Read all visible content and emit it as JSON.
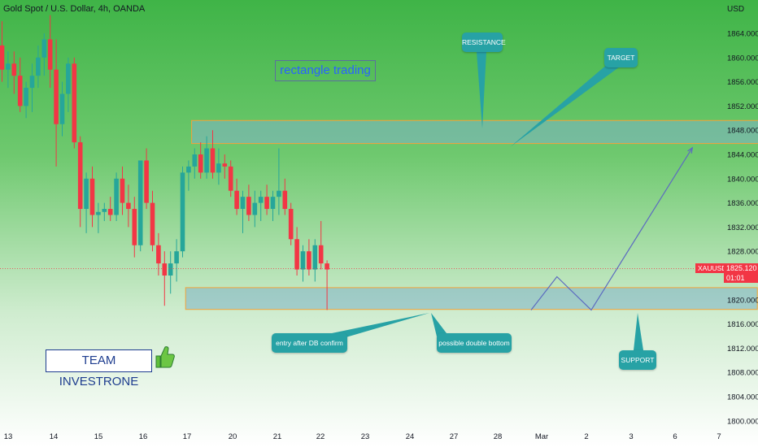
{
  "header": {
    "title": "Gold Spot / U.S. Dollar, 4h, OANDA",
    "currency": "USD"
  },
  "annotations": {
    "title_box": "rectangle trading",
    "resistance": "RESISTANCE",
    "target": "TARGET",
    "support": "SUPPORT",
    "entry": "entry after DB confirm",
    "double_bottom": "possible double bottom",
    "team": "TEAM INVESTRONE"
  },
  "price_tag": {
    "symbol": "XAUUSD",
    "price": "1825.120",
    "countdown": "01:01",
    "color": "#f23645"
  },
  "colors": {
    "up": "#26a69a",
    "down": "#f23645",
    "zone_fill": "#7fb2c6",
    "zone_border": "#f2a33a",
    "callout": "#27a2a5",
    "path": "#5c6bc0"
  },
  "chart_data": {
    "type": "candlestick",
    "y_axis_labels": [
      "1864.000",
      "1860.000",
      "1856.000",
      "1852.000",
      "1848.000",
      "1844.000",
      "1840.000",
      "1836.000",
      "1832.000",
      "1828.000",
      "1824.000",
      "1820.000",
      "1816.000",
      "1812.000",
      "1808.000",
      "1804.000",
      "1800.000"
    ],
    "x_axis_labels": [
      "13",
      "14",
      "15",
      "16",
      "17",
      "20",
      "21",
      "22",
      "23",
      "24",
      "27",
      "28",
      "Mar",
      "2",
      "3",
      "6",
      "7"
    ],
    "ylim": [
      1799,
      1868
    ],
    "current_price": 1825.12,
    "zones": [
      {
        "name": "resistance",
        "x_from": 31.5,
        "x_to": 126.5,
        "y_low": 1845.8,
        "y_high": 1849.6
      },
      {
        "name": "support",
        "x_from": 30.5,
        "x_to": 125.5,
        "y_low": 1818.4,
        "y_high": 1822.0
      }
    ],
    "projection": [
      {
        "x": 87.9,
        "y": 1818.3
      },
      {
        "x": 92.2,
        "y": 1823.8
      },
      {
        "x": 97.9,
        "y": 1818.3
      },
      {
        "x": 114.7,
        "y": 1845.1
      }
    ],
    "candles": [
      {
        "o": 1862,
        "h": 1866,
        "l": 1856,
        "c": 1858
      },
      {
        "o": 1858,
        "h": 1861,
        "l": 1855,
        "c": 1859
      },
      {
        "o": 1859,
        "h": 1861,
        "l": 1854,
        "c": 1857
      },
      {
        "o": 1857,
        "h": 1860,
        "l": 1851,
        "c": 1852
      },
      {
        "o": 1852,
        "h": 1856,
        "l": 1850,
        "c": 1855
      },
      {
        "o": 1855,
        "h": 1859,
        "l": 1851,
        "c": 1857
      },
      {
        "o": 1857,
        "h": 1862,
        "l": 1855,
        "c": 1860
      },
      {
        "o": 1860,
        "h": 1864,
        "l": 1857,
        "c": 1863
      },
      {
        "o": 1863,
        "h": 1867,
        "l": 1855,
        "c": 1858
      },
      {
        "o": 1858,
        "h": 1863,
        "l": 1842,
        "c": 1849
      },
      {
        "o": 1849,
        "h": 1856,
        "l": 1847,
        "c": 1854
      },
      {
        "o": 1854,
        "h": 1860,
        "l": 1851,
        "c": 1859
      },
      {
        "o": 1859,
        "h": 1860,
        "l": 1845,
        "c": 1846
      },
      {
        "o": 1846,
        "h": 1847,
        "l": 1832,
        "c": 1835
      },
      {
        "o": 1835,
        "h": 1841,
        "l": 1831,
        "c": 1840
      },
      {
        "o": 1840,
        "h": 1842,
        "l": 1832,
        "c": 1834
      },
      {
        "o": 1834,
        "h": 1836,
        "l": 1831,
        "c": 1834.5
      },
      {
        "o": 1834.5,
        "h": 1836,
        "l": 1833,
        "c": 1835
      },
      {
        "o": 1835,
        "h": 1837,
        "l": 1833,
        "c": 1834
      },
      {
        "o": 1834,
        "h": 1841,
        "l": 1833,
        "c": 1840
      },
      {
        "o": 1840,
        "h": 1842,
        "l": 1834,
        "c": 1836
      },
      {
        "o": 1836,
        "h": 1839,
        "l": 1832,
        "c": 1835
      },
      {
        "o": 1835,
        "h": 1837,
        "l": 1827,
        "c": 1829
      },
      {
        "o": 1829,
        "h": 1843,
        "l": 1828,
        "c": 1843
      },
      {
        "o": 1843,
        "h": 1845,
        "l": 1835,
        "c": 1836
      },
      {
        "o": 1836,
        "h": 1838,
        "l": 1828,
        "c": 1829
      },
      {
        "o": 1829,
        "h": 1831,
        "l": 1824,
        "c": 1826
      },
      {
        "o": 1826,
        "h": 1828,
        "l": 1819,
        "c": 1824
      },
      {
        "o": 1824,
        "h": 1828,
        "l": 1821,
        "c": 1826
      },
      {
        "o": 1826,
        "h": 1830,
        "l": 1823,
        "c": 1828
      },
      {
        "o": 1828,
        "h": 1842,
        "l": 1827,
        "c": 1841
      },
      {
        "o": 1841,
        "h": 1843,
        "l": 1838,
        "c": 1842
      },
      {
        "o": 1842,
        "h": 1845,
        "l": 1840,
        "c": 1844
      },
      {
        "o": 1844,
        "h": 1846,
        "l": 1840,
        "c": 1841
      },
      {
        "o": 1841,
        "h": 1847,
        "l": 1840,
        "c": 1845
      },
      {
        "o": 1845,
        "h": 1848,
        "l": 1840,
        "c": 1841
      },
      {
        "o": 1841,
        "h": 1845,
        "l": 1839,
        "c": 1842.5
      },
      {
        "o": 1842.5,
        "h": 1844,
        "l": 1840,
        "c": 1842
      },
      {
        "o": 1842,
        "h": 1843,
        "l": 1837,
        "c": 1838
      },
      {
        "o": 1838,
        "h": 1840,
        "l": 1834,
        "c": 1835
      },
      {
        "o": 1835,
        "h": 1838,
        "l": 1831,
        "c": 1837
      },
      {
        "o": 1837,
        "h": 1839,
        "l": 1833,
        "c": 1834
      },
      {
        "o": 1834,
        "h": 1838,
        "l": 1832,
        "c": 1836
      },
      {
        "o": 1836,
        "h": 1838,
        "l": 1833,
        "c": 1837
      },
      {
        "o": 1837,
        "h": 1839,
        "l": 1834,
        "c": 1835
      },
      {
        "o": 1835,
        "h": 1838,
        "l": 1833,
        "c": 1837
      },
      {
        "o": 1837,
        "h": 1845,
        "l": 1834,
        "c": 1838
      },
      {
        "o": 1838,
        "h": 1840,
        "l": 1834,
        "c": 1835
      },
      {
        "o": 1835,
        "h": 1836,
        "l": 1829,
        "c": 1830
      },
      {
        "o": 1830,
        "h": 1832,
        "l": 1824,
        "c": 1825
      },
      {
        "o": 1825,
        "h": 1829,
        "l": 1823,
        "c": 1828
      },
      {
        "o": 1828,
        "h": 1830,
        "l": 1824,
        "c": 1825
      },
      {
        "o": 1825,
        "h": 1830,
        "l": 1823,
        "c": 1829
      },
      {
        "o": 1829,
        "h": 1833,
        "l": 1825,
        "c": 1826
      },
      {
        "o": 1826,
        "h": 1826.5,
        "l": 1818.3,
        "c": 1825
      }
    ]
  }
}
